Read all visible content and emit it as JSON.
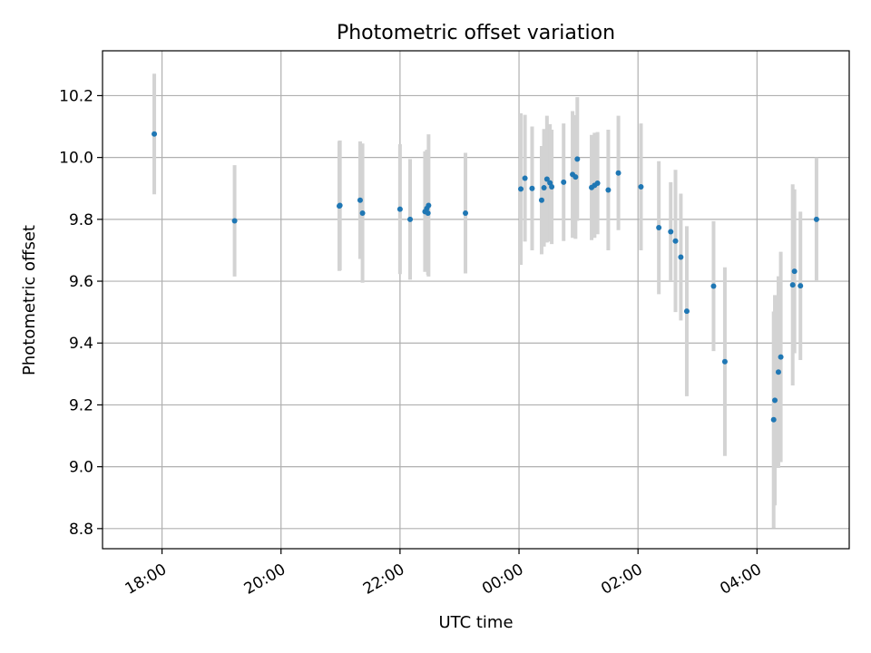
{
  "chart_data": {
    "type": "scatter",
    "title": "Photometric offset variation",
    "xlabel": "UTC time",
    "ylabel": "Photometric offset",
    "x_unit": "hours relative to 00:00 UTC",
    "xlim": [
      -7.0,
      5.55
    ],
    "ylim": [
      8.735,
      10.345
    ],
    "xticks": [
      {
        "value": -6,
        "label": "18:00"
      },
      {
        "value": -4,
        "label": "20:00"
      },
      {
        "value": -2,
        "label": "22:00"
      },
      {
        "value": 0,
        "label": "00:00"
      },
      {
        "value": 2,
        "label": "02:00"
      },
      {
        "value": 4,
        "label": "04:00"
      }
    ],
    "yticks": [
      {
        "value": 8.8,
        "label": "8.8"
      },
      {
        "value": 9.0,
        "label": "9.0"
      },
      {
        "value": 9.2,
        "label": "9.2"
      },
      {
        "value": 9.4,
        "label": "9.4"
      },
      {
        "value": 9.6,
        "label": "9.6"
      },
      {
        "value": 9.8,
        "label": "9.8"
      },
      {
        "value": 10.0,
        "label": "10.0"
      },
      {
        "value": 10.2,
        "label": "10.2"
      }
    ],
    "grid": true,
    "colors": {
      "marker": "#1f77b4",
      "errorbar": "#d3d3d3",
      "grid": "#b0b0b0"
    },
    "points": [
      {
        "x": -6.13,
        "y": 10.076,
        "err": 0.195
      },
      {
        "x": -4.78,
        "y": 9.795,
        "err": 0.18
      },
      {
        "x": -3.02,
        "y": 9.843,
        "err": 0.21
      },
      {
        "x": -3.01,
        "y": 9.845,
        "err": 0.21
      },
      {
        "x": -2.67,
        "y": 9.862,
        "err": 0.19
      },
      {
        "x": -2.63,
        "y": 9.82,
        "err": 0.225
      },
      {
        "x": -2.0,
        "y": 9.833,
        "err": 0.21
      },
      {
        "x": -1.83,
        "y": 9.8,
        "err": 0.195
      },
      {
        "x": -1.58,
        "y": 9.825,
        "err": 0.195
      },
      {
        "x": -1.55,
        "y": 9.835,
        "err": 0.19
      },
      {
        "x": -1.53,
        "y": 9.82,
        "err": 0.2
      },
      {
        "x": -1.52,
        "y": 9.845,
        "err": 0.23
      },
      {
        "x": -0.9,
        "y": 9.82,
        "err": 0.195
      },
      {
        "x": 0.03,
        "y": 9.898,
        "err": 0.245
      },
      {
        "x": 0.1,
        "y": 9.933,
        "err": 0.205
      },
      {
        "x": 0.22,
        "y": 9.9,
        "err": 0.2
      },
      {
        "x": 0.38,
        "y": 9.862,
        "err": 0.175
      },
      {
        "x": 0.42,
        "y": 9.902,
        "err": 0.19
      },
      {
        "x": 0.47,
        "y": 9.93,
        "err": 0.205
      },
      {
        "x": 0.52,
        "y": 9.918,
        "err": 0.19
      },
      {
        "x": 0.55,
        "y": 9.905,
        "err": 0.185
      },
      {
        "x": 0.75,
        "y": 9.92,
        "err": 0.19
      },
      {
        "x": 0.9,
        "y": 9.945,
        "err": 0.205
      },
      {
        "x": 0.95,
        "y": 9.937,
        "err": 0.2
      },
      {
        "x": 0.98,
        "y": 9.995,
        "err": 0.2
      },
      {
        "x": 1.22,
        "y": 9.903,
        "err": 0.17
      },
      {
        "x": 1.27,
        "y": 9.91,
        "err": 0.17
      },
      {
        "x": 1.32,
        "y": 9.917,
        "err": 0.165
      },
      {
        "x": 1.5,
        "y": 9.895,
        "err": 0.195
      },
      {
        "x": 1.67,
        "y": 9.95,
        "err": 0.185
      },
      {
        "x": 2.05,
        "y": 9.905,
        "err": 0.205
      },
      {
        "x": 2.35,
        "y": 9.773,
        "err": 0.215
      },
      {
        "x": 2.55,
        "y": 9.76,
        "err": 0.16
      },
      {
        "x": 2.63,
        "y": 9.73,
        "err": 0.23
      },
      {
        "x": 2.72,
        "y": 9.678,
        "err": 0.205
      },
      {
        "x": 2.82,
        "y": 9.503,
        "err": 0.275
      },
      {
        "x": 3.27,
        "y": 9.584,
        "err": 0.21
      },
      {
        "x": 3.46,
        "y": 9.34,
        "err": 0.305
      },
      {
        "x": 4.28,
        "y": 9.152,
        "err": 0.35
      },
      {
        "x": 4.3,
        "y": 9.215,
        "err": 0.34
      },
      {
        "x": 4.36,
        "y": 9.306,
        "err": 0.31
      },
      {
        "x": 4.4,
        "y": 9.355,
        "err": 0.34
      },
      {
        "x": 4.6,
        "y": 9.588,
        "err": 0.325
      },
      {
        "x": 4.63,
        "y": 9.632,
        "err": 0.265
      },
      {
        "x": 4.73,
        "y": 9.585,
        "err": 0.24
      },
      {
        "x": 5.0,
        "y": 9.8,
        "err": 0.2
      }
    ]
  }
}
